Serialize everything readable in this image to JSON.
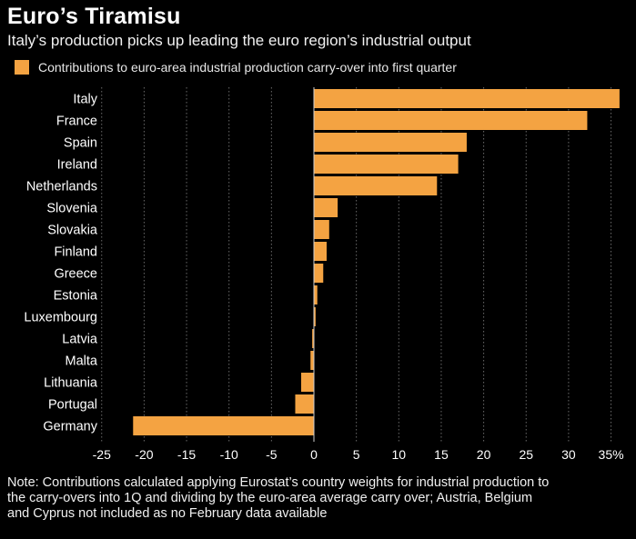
{
  "header": {
    "title": "Euro’s Tiramisu",
    "subtitle": "Italy’s production picks up leading the euro region’s industrial output"
  },
  "legend": {
    "label": "Contributions to euro-area industrial production carry-over into first quarter",
    "color": "#f4a342"
  },
  "note": "Note: Contributions calculated applying Eurostat’s country weights for industrial production to the carry-overs into 1Q and dividing by the euro-area average carry over; Austria, Belgium and Cyprus not included as no February data available",
  "chart_data": {
    "type": "bar",
    "orientation": "horizontal",
    "categories": [
      "Italy",
      "France",
      "Spain",
      "Ireland",
      "Netherlands",
      "Slovenia",
      "Slovakia",
      "Finland",
      "Greece",
      "Estonia",
      "Luxembourg",
      "Latvia",
      "Malta",
      "Lithuania",
      "Portugal",
      "Germany"
    ],
    "series": [
      {
        "name": "Contributions to euro-area industrial production carry-over into first quarter",
        "values": [
          36,
          32.2,
          18,
          17,
          14.5,
          2.8,
          1.8,
          1.5,
          1.1,
          0.4,
          0.2,
          -0.2,
          -0.4,
          -1.5,
          -2.2,
          -21.3
        ],
        "color": "#f4a342"
      }
    ],
    "x_ticks": [
      "-25",
      "-20",
      "-15",
      "-10",
      "-5",
      "0",
      "5",
      "10",
      "15",
      "20",
      "25",
      "30",
      "35%"
    ],
    "xlim": [
      -25,
      36
    ],
    "grid": true,
    "colors": {
      "background": "#000000",
      "bar": "#f4a342",
      "grid": "#6a6a6a",
      "text": "#ffffff"
    }
  }
}
